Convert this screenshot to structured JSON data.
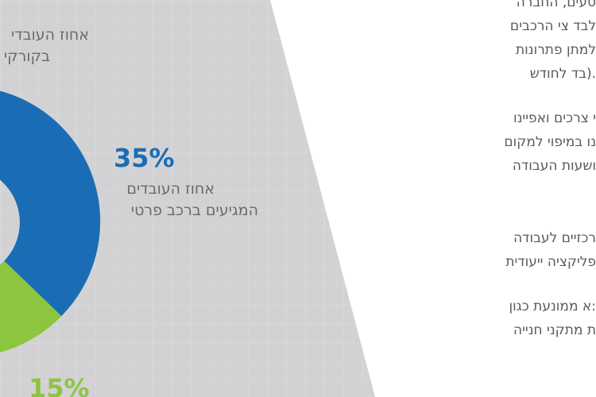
{
  "infographic": {
    "top_label": [
      "אחוז העובדי",
      "בקורקי"
    ],
    "segment_blue": {
      "percent": "35%",
      "label": [
        "אחוז העובדים",
        "המגיעים ברכב פרטי"
      ]
    },
    "segment_green": {
      "percent": "15%"
    }
  },
  "text_column": {
    "paragraphs": [
      [
        "סעים, החברה",
        "לבד צי הרכבים",
        "למתן פתרונות",
        "בד לחודש)."
      ],
      [
        "י צרכים ואפיינו",
        "נו במיפוי למקום",
        "ושעות העבודה"
      ],
      [
        "רכזיים   לעבודה",
        "פליקציה ייעודית"
      ],
      [
        "א ממונעת כגון:",
        "ת  מתקני  חנייה"
      ]
    ]
  }
}
